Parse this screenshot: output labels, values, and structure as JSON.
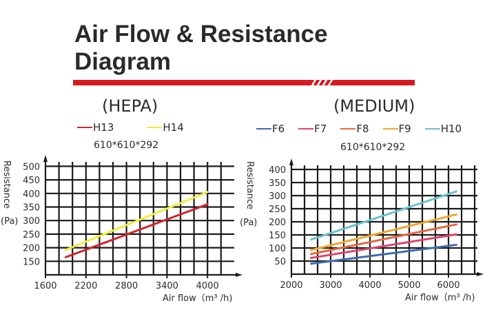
{
  "header": {
    "title_line1": "Air Flow & Resistance",
    "title_line2": "Diagram",
    "accent_color": "#d71920"
  },
  "chart_data": [
    {
      "type": "line",
      "title": "(HEPA)",
      "subtitle": "610*610*292",
      "xlabel": "Air flow（m³ /h)",
      "ylabel": "Resistance (Pa)",
      "ylabel_main": "Resistance",
      "ylabel_unit": "(Pa)",
      "xlim": [
        1600,
        4600
      ],
      "ylim": [
        100,
        500
      ],
      "x_ticks": [
        1600,
        2200,
        2800,
        3400,
        4000
      ],
      "y_ticks": [
        150,
        200,
        250,
        300,
        350,
        400,
        450,
        500
      ],
      "grid": true,
      "grid_x_step": 200,
      "grid_y_step": 50,
      "legend_position": "top",
      "series": [
        {
          "name": "H13",
          "color": "#d2232a",
          "x": [
            1900,
            4000
          ],
          "values": [
            165,
            360
          ]
        },
        {
          "name": "H14",
          "color": "#eeee3a",
          "x": [
            1900,
            4000
          ],
          "values": [
            192,
            405
          ]
        }
      ]
    },
    {
      "type": "line",
      "title": "(MEDIUM)",
      "subtitle": "610*610*292",
      "xlabel": "Air flow（m³ /h)",
      "ylabel": "Resistance (Pa)",
      "ylabel_main": "Resistance",
      "ylabel_unit": "(Pa)",
      "xlim": [
        2000,
        6800
      ],
      "ylim": [
        0,
        400
      ],
      "x_ticks": [
        2000,
        3000,
        4000,
        5000,
        6000
      ],
      "y_ticks": [
        50,
        100,
        150,
        200,
        250,
        300,
        350,
        400
      ],
      "grid": true,
      "grid_x_step": 333,
      "grid_y_step": 50,
      "legend_position": "top",
      "series": [
        {
          "name": "F6",
          "color": "#3d6bab",
          "x": [
            2500,
            6200
          ],
          "values": [
            40,
            112
          ]
        },
        {
          "name": "F7",
          "color": "#e0426a",
          "x": [
            2500,
            6200
          ],
          "values": [
            62,
            152
          ]
        },
        {
          "name": "F8",
          "color": "#e8663f",
          "x": [
            2500,
            6200
          ],
          "values": [
            77,
            190
          ]
        },
        {
          "name": "F9",
          "color": "#f0a72c",
          "x": [
            2500,
            6200
          ],
          "values": [
            92,
            228
          ]
        },
        {
          "name": "H10",
          "color": "#6cc1d0",
          "x": [
            2500,
            6200
          ],
          "values": [
            132,
            316
          ]
        }
      ]
    }
  ]
}
